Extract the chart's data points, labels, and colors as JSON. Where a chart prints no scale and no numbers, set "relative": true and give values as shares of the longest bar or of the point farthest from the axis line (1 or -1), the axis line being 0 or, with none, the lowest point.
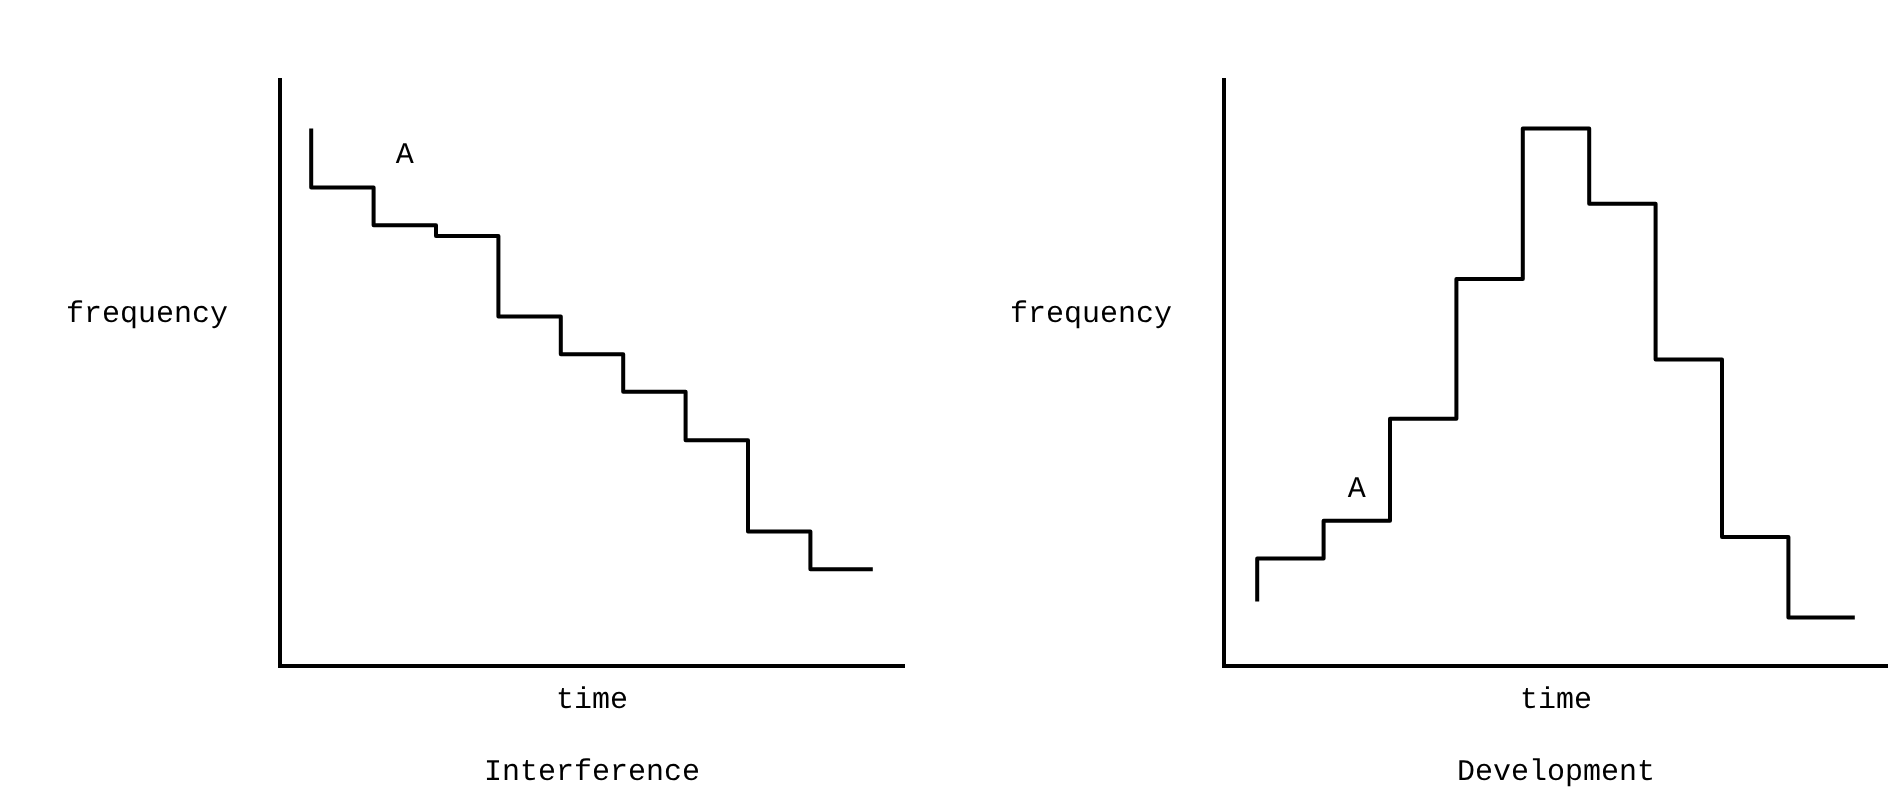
{
  "chart_data": [
    {
      "type": "step",
      "title": "Interference",
      "xlabel": "time",
      "ylabel": "frequency",
      "relative": true,
      "tick_labels": false,
      "grid": false,
      "legend": false,
      "color": "#000000",
      "annotations": [
        "A"
      ],
      "categories": [
        null,
        null,
        null,
        null,
        null,
        null,
        null,
        null,
        null,
        null
      ],
      "values": [
        1,
        0.89,
        0.82,
        0.8,
        0.65,
        0.58,
        0.51,
        0.42,
        0.25,
        0.18
      ]
    },
    {
      "type": "step",
      "title": "Development",
      "xlabel": "time",
      "ylabel": "frequency",
      "relative": true,
      "tick_labels": false,
      "grid": false,
      "legend": false,
      "color": "#000000",
      "annotations": [
        "A"
      ],
      "categories": [
        null,
        null,
        null,
        null,
        null,
        null,
        null,
        null,
        null,
        null
      ],
      "values": [
        0.12,
        0.2,
        0.27,
        0.46,
        0.72,
        1,
        0.86,
        0.57,
        0.24,
        0.09
      ]
    }
  ]
}
